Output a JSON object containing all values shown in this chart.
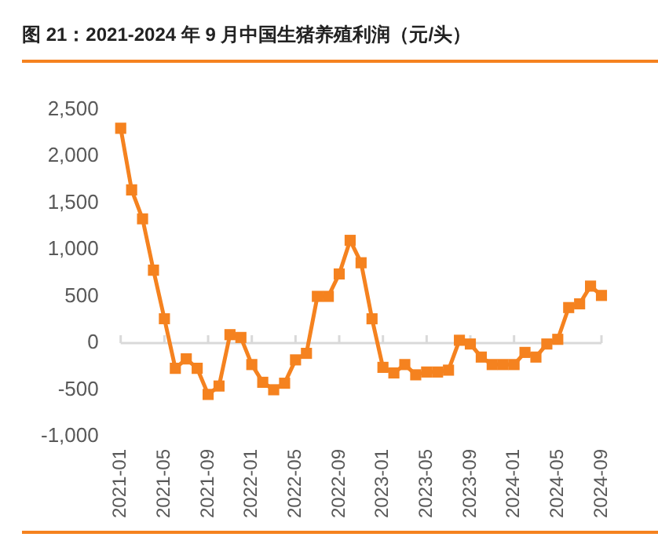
{
  "chart_data": {
    "type": "line",
    "title": "图 21：2021-2024 年 9 月中国生猪养殖利润（元/头）",
    "categories": [
      "2021-01",
      null,
      null,
      null,
      "2021-05",
      null,
      null,
      null,
      "2021-09",
      null,
      null,
      null,
      "2022-01",
      null,
      null,
      null,
      "2022-05",
      null,
      null,
      null,
      "2022-09",
      null,
      null,
      null,
      "2023-01",
      null,
      null,
      null,
      "2023-05",
      null,
      null,
      null,
      "2023-09",
      null,
      null,
      null,
      "2024-01",
      null,
      null,
      null,
      "2024-05",
      null,
      null,
      null,
      "2024-09"
    ],
    "series": [
      {
        "color": "#f5821f",
        "values": [
          2300,
          1640,
          1330,
          780,
          260,
          -270,
          -170,
          -270,
          -550,
          -460,
          90,
          60,
          -230,
          -420,
          -500,
          -430,
          -180,
          -110,
          500,
          500,
          740,
          1100,
          860,
          260,
          -260,
          -320,
          -230,
          -340,
          -310,
          -310,
          -290,
          30,
          -10,
          -150,
          -230,
          -230,
          -230,
          -100,
          -150,
          -10,
          40,
          380,
          420,
          610,
          510
        ]
      }
    ],
    "ylim": [
      -1000,
      2500
    ],
    "yticks": [
      {
        "value": -1000,
        "label": "-1,000"
      },
      -500,
      0,
      500,
      {
        "value": 1000,
        "label": "1,000"
      },
      {
        "value": 1500,
        "label": "1,500"
      },
      {
        "value": 2000,
        "label": "2,000"
      },
      {
        "value": 2500,
        "label": "2,500"
      }
    ],
    "ref_lines": [
      {
        "axis": "y",
        "value": 0,
        "color": "#d9d9d9"
      }
    ],
    "grid": false,
    "legend": false,
    "marker": "square",
    "line_style": "solid"
  }
}
